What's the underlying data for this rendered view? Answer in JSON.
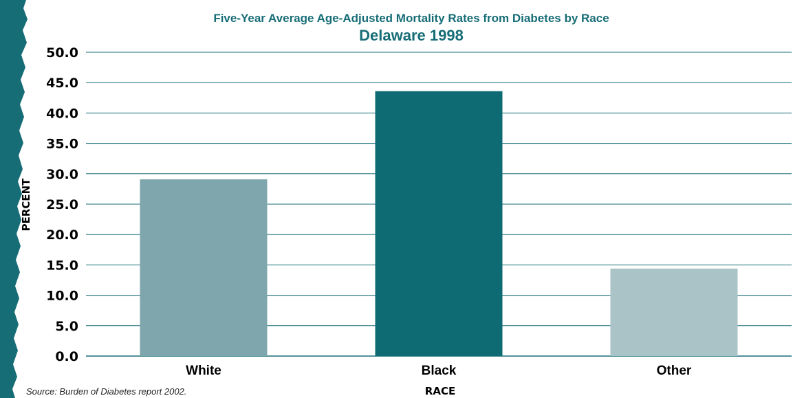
{
  "chart_data": {
    "type": "bar",
    "title": "Five-Year Average Age-Adjusted Mortality Rates from Diabetes by Race",
    "subtitle": "Delaware 1998",
    "xlabel": "RACE",
    "ylabel": "PERCENT",
    "categories": [
      "White",
      "Black",
      "Other"
    ],
    "values": [
      29.1,
      43.6,
      14.4
    ],
    "bar_colors": [
      "#7ea6ac",
      "#0f6b73",
      "#a9c3c7"
    ],
    "ylim": [
      0,
      50
    ],
    "yticks": [
      "0.0",
      "5.0",
      "10.0",
      "15.0",
      "20.0",
      "25.0",
      "30.0",
      "35.0",
      "40.0",
      "45.0",
      "50.0"
    ],
    "grid": true,
    "grid_color": "#176d76",
    "source": "Source: Burden of Diabetes report 2002."
  },
  "colors": {
    "title": "#176d76",
    "edge": "#176d76"
  }
}
